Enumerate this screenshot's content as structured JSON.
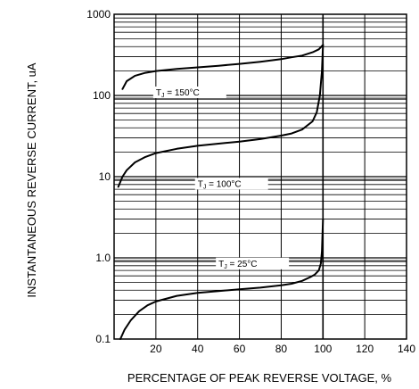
{
  "chart_data": {
    "type": "line",
    "title": "",
    "xlabel": "PERCENTAGE OF PEAK REVERSE VOLTAGE, %",
    "ylabel": "INSTANTANEOUS REVERSE CURRENT, uA",
    "xlim": [
      0,
      140
    ],
    "ylim": [
      0.1,
      1000
    ],
    "yscale": "log",
    "grid": true,
    "xticks": [
      20,
      40,
      60,
      80,
      100,
      120,
      140
    ],
    "xtick_labels": [
      "20",
      "40",
      "60",
      "80",
      "100",
      "120",
      "140"
    ],
    "yticks": [
      0.1,
      1,
      10,
      100,
      1000
    ],
    "ytick_labels": [
      "0.1",
      "1.0",
      "10",
      "100",
      "1000"
    ],
    "line_color": "#000000",
    "series": [
      {
        "name": "TJ = 150°C",
        "x": [
          4,
          6,
          10,
          15,
          20,
          30,
          40,
          50,
          60,
          70,
          80,
          85,
          90,
          95,
          98,
          100
        ],
        "y": [
          120,
          150,
          175,
          190,
          200,
          212,
          222,
          232,
          245,
          260,
          280,
          295,
          310,
          340,
          370,
          420
        ]
      },
      {
        "name": "TJ = 100°C",
        "x": [
          2,
          4,
          6,
          10,
          15,
          20,
          30,
          40,
          50,
          60,
          70,
          80,
          85,
          90,
          95,
          97,
          98.5,
          99.5,
          100
        ],
        "y": [
          7.5,
          10,
          12,
          15,
          17.5,
          19.5,
          22,
          24,
          25.5,
          27,
          29,
          32,
          34,
          38,
          48,
          62,
          100,
          200,
          420
        ]
      },
      {
        "name": "TJ = 25°C",
        "x": [
          3,
          5,
          8,
          12,
          16,
          20,
          30,
          40,
          50,
          60,
          70,
          80,
          85,
          90,
          94,
          96,
          98,
          99,
          99.5,
          100
        ],
        "y": [
          0.1,
          0.13,
          0.17,
          0.22,
          0.26,
          0.29,
          0.34,
          0.37,
          0.39,
          0.41,
          0.43,
          0.46,
          0.48,
          0.52,
          0.58,
          0.62,
          0.7,
          0.85,
          1.2,
          3
        ]
      }
    ],
    "annotations": [
      {
        "series": 0,
        "text_main": "T",
        "text_sub": "J",
        "text_rest": " = 150°C",
        "at": [
          20,
          100
        ]
      },
      {
        "series": 1,
        "text_main": "T",
        "text_sub": "J",
        "text_rest": " = 100°C",
        "at": [
          40,
          7.5
        ]
      },
      {
        "series": 2,
        "text_main": "T",
        "text_sub": "J",
        "text_rest": " = 25°C",
        "at": [
          50,
          0.78
        ]
      }
    ]
  }
}
